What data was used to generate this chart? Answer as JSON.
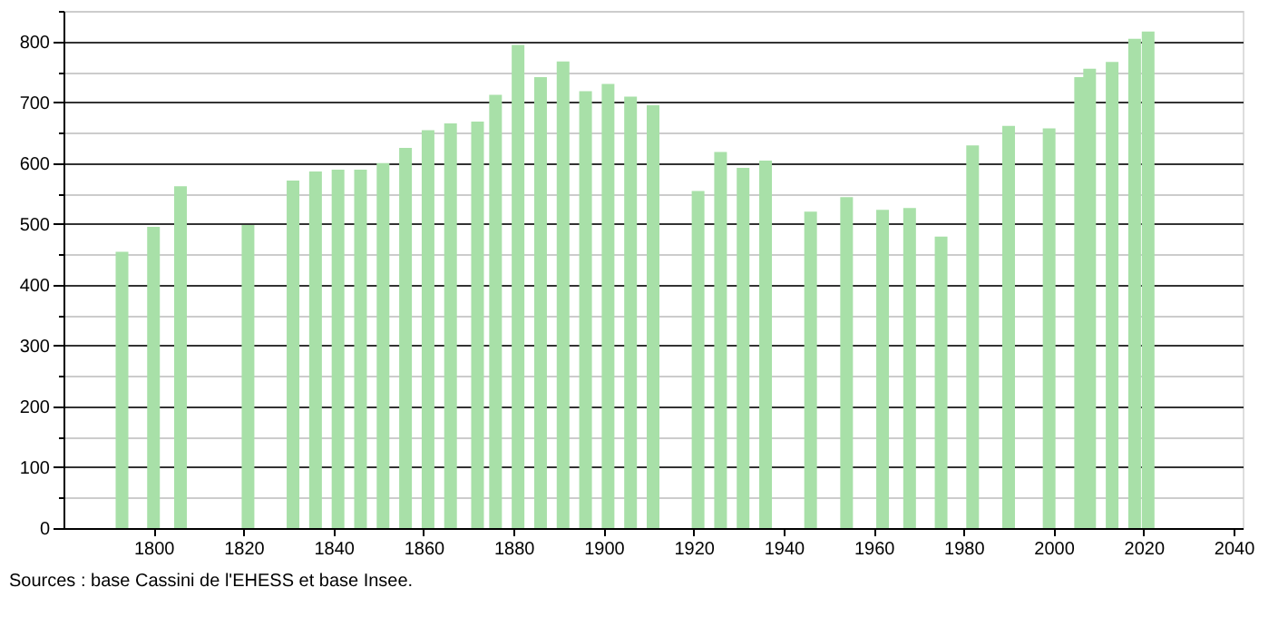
{
  "chart_data": {
    "type": "bar",
    "x": [
      1793,
      1800,
      1806,
      1821,
      1831,
      1836,
      1841,
      1846,
      1851,
      1856,
      1861,
      1866,
      1872,
      1876,
      1881,
      1886,
      1891,
      1896,
      1901,
      1906,
      1911,
      1921,
      1926,
      1931,
      1936,
      1946,
      1954,
      1962,
      1968,
      1975,
      1982,
      1990,
      1999,
      2006,
      2008,
      2013,
      2018,
      2021
    ],
    "values": [
      454,
      495,
      562,
      498,
      571,
      586,
      589,
      589,
      600,
      625,
      654,
      665,
      668,
      712,
      794,
      741,
      767,
      718,
      730,
      709,
      695,
      554,
      618,
      592,
      604,
      520,
      544,
      523,
      526,
      479,
      629,
      661,
      657,
      741,
      755,
      766,
      804,
      816
    ],
    "color": "#a8e0a8",
    "xlim": [
      1780,
      2042
    ],
    "xticks": [
      1800,
      1820,
      1840,
      1860,
      1880,
      1900,
      1920,
      1940,
      1960,
      1980,
      2000,
      2020,
      2040
    ],
    "ylim": [
      0,
      850
    ],
    "yticks": [
      0,
      {
        "value": 50,
        "label": null
      },
      100,
      {
        "value": 150,
        "label": null
      },
      200,
      {
        "value": 250,
        "label": null
      },
      300,
      {
        "value": 350,
        "label": null
      },
      400,
      {
        "value": 450,
        "label": null
      },
      500,
      {
        "value": 550,
        "label": null
      },
      600,
      {
        "value": 650,
        "label": null
      },
      700,
      {
        "value": 750,
        "label": null
      },
      800,
      {
        "value": 850,
        "label": null
      }
    ],
    "grid": "y",
    "annotations": [
      "Sources : base Cassini de l'EHESS et base Insee."
    ]
  }
}
